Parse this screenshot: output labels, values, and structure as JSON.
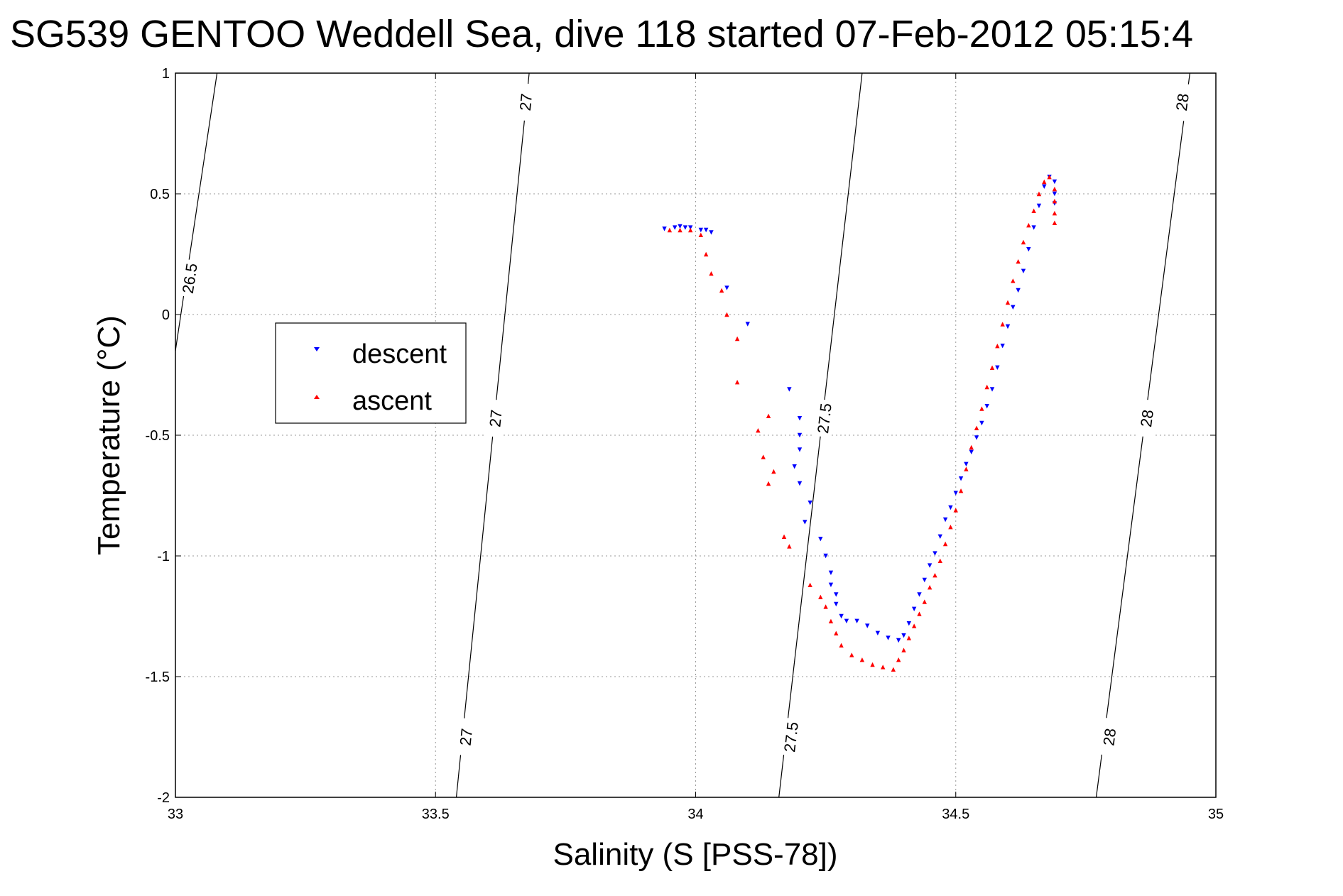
{
  "chart_data": {
    "type": "scatter",
    "title": "SG539 GENTOO Weddell Sea, dive 118 started 07-Feb-2012 05:15:4",
    "xlabel": "Salinity (S [PSS-78])",
    "ylabel": "Temperature (°C)",
    "xlim": [
      33,
      35
    ],
    "ylim": [
      -2,
      1
    ],
    "x_ticks": [
      {
        "value": 33,
        "label": "33"
      },
      {
        "value": 33.5,
        "label": "33.5"
      },
      {
        "value": 34,
        "label": "34"
      },
      {
        "value": 34.5,
        "label": "34.5"
      },
      {
        "value": 35,
        "label": "35"
      }
    ],
    "y_ticks": [
      {
        "value": 1,
        "label": "1"
      },
      {
        "value": 0.5,
        "label": "0.5"
      },
      {
        "value": 0,
        "label": "0"
      },
      {
        "value": -0.5,
        "label": "-0.5"
      },
      {
        "value": -1,
        "label": "-1"
      },
      {
        "value": -1.5,
        "label": "-1.5"
      },
      {
        "value": -2,
        "label": "-2"
      }
    ],
    "grid": true,
    "legend_position": "left",
    "series": [
      {
        "name": "descent",
        "color": "#0000ff",
        "marker": "triangle-down",
        "points": [
          [
            33.94,
            0.355
          ],
          [
            33.96,
            0.36
          ],
          [
            33.97,
            0.365
          ],
          [
            33.98,
            0.36
          ],
          [
            33.99,
            0.36
          ],
          [
            34.01,
            0.35
          ],
          [
            34.02,
            0.35
          ],
          [
            34.03,
            0.34
          ],
          [
            34.06,
            0.11
          ],
          [
            34.1,
            -0.04
          ],
          [
            34.18,
            -0.31
          ],
          [
            34.2,
            -0.43
          ],
          [
            34.2,
            -0.5
          ],
          [
            34.2,
            -0.56
          ],
          [
            34.19,
            -0.63
          ],
          [
            34.2,
            -0.7
          ],
          [
            34.22,
            -0.78
          ],
          [
            34.21,
            -0.86
          ],
          [
            34.24,
            -0.93
          ],
          [
            34.25,
            -1.0
          ],
          [
            34.26,
            -1.07
          ],
          [
            34.26,
            -1.12
          ],
          [
            34.27,
            -1.16
          ],
          [
            34.27,
            -1.2
          ],
          [
            34.28,
            -1.25
          ],
          [
            34.29,
            -1.27
          ],
          [
            34.31,
            -1.27
          ],
          [
            34.33,
            -1.29
          ],
          [
            34.35,
            -1.32
          ],
          [
            34.37,
            -1.34
          ],
          [
            34.39,
            -1.35
          ],
          [
            34.4,
            -1.33
          ],
          [
            34.41,
            -1.28
          ],
          [
            34.42,
            -1.22
          ],
          [
            34.43,
            -1.16
          ],
          [
            34.44,
            -1.1
          ],
          [
            34.45,
            -1.04
          ],
          [
            34.46,
            -0.99
          ],
          [
            34.47,
            -0.92
          ],
          [
            34.48,
            -0.85
          ],
          [
            34.49,
            -0.8
          ],
          [
            34.5,
            -0.74
          ],
          [
            34.51,
            -0.68
          ],
          [
            34.52,
            -0.62
          ],
          [
            34.53,
            -0.57
          ],
          [
            34.54,
            -0.51
          ],
          [
            34.55,
            -0.45
          ],
          [
            34.56,
            -0.38
          ],
          [
            34.57,
            -0.31
          ],
          [
            34.58,
            -0.22
          ],
          [
            34.59,
            -0.13
          ],
          [
            34.6,
            -0.05
          ],
          [
            34.61,
            0.03
          ],
          [
            34.62,
            0.1
          ],
          [
            34.63,
            0.18
          ],
          [
            34.64,
            0.27
          ],
          [
            34.65,
            0.36
          ],
          [
            34.66,
            0.45
          ],
          [
            34.67,
            0.53
          ],
          [
            34.68,
            0.57
          ],
          [
            34.69,
            0.55
          ],
          [
            34.69,
            0.5
          ],
          [
            34.69,
            0.46
          ]
        ]
      },
      {
        "name": "ascent",
        "color": "#ff0000",
        "marker": "triangle-up",
        "points": [
          [
            34.69,
            0.38
          ],
          [
            34.69,
            0.42
          ],
          [
            34.69,
            0.47
          ],
          [
            34.69,
            0.52
          ],
          [
            34.68,
            0.57
          ],
          [
            34.67,
            0.55
          ],
          [
            34.66,
            0.5
          ],
          [
            34.65,
            0.43
          ],
          [
            34.64,
            0.37
          ],
          [
            34.63,
            0.3
          ],
          [
            34.62,
            0.22
          ],
          [
            34.61,
            0.14
          ],
          [
            34.6,
            0.05
          ],
          [
            34.59,
            -0.04
          ],
          [
            34.58,
            -0.13
          ],
          [
            34.57,
            -0.22
          ],
          [
            34.56,
            -0.3
          ],
          [
            34.55,
            -0.39
          ],
          [
            34.54,
            -0.47
          ],
          [
            34.53,
            -0.55
          ],
          [
            34.52,
            -0.64
          ],
          [
            34.51,
            -0.73
          ],
          [
            34.5,
            -0.81
          ],
          [
            34.49,
            -0.88
          ],
          [
            34.48,
            -0.95
          ],
          [
            34.47,
            -1.02
          ],
          [
            34.46,
            -1.08
          ],
          [
            34.45,
            -1.13
          ],
          [
            34.44,
            -1.19
          ],
          [
            34.43,
            -1.24
          ],
          [
            34.42,
            -1.29
          ],
          [
            34.41,
            -1.34
          ],
          [
            34.4,
            -1.39
          ],
          [
            34.39,
            -1.43
          ],
          [
            34.38,
            -1.47
          ],
          [
            34.36,
            -1.46
          ],
          [
            34.34,
            -1.45
          ],
          [
            34.32,
            -1.43
          ],
          [
            34.3,
            -1.41
          ],
          [
            34.28,
            -1.37
          ],
          [
            34.27,
            -1.32
          ],
          [
            34.26,
            -1.27
          ],
          [
            34.25,
            -1.21
          ],
          [
            34.24,
            -1.17
          ],
          [
            34.22,
            -1.12
          ],
          [
            34.18,
            -0.96
          ],
          [
            34.17,
            -0.92
          ],
          [
            34.15,
            -0.65
          ],
          [
            34.14,
            -0.7
          ],
          [
            34.13,
            -0.59
          ],
          [
            34.12,
            -0.48
          ],
          [
            34.14,
            -0.42
          ],
          [
            34.08,
            -0.28
          ],
          [
            34.08,
            -0.1
          ],
          [
            34.06,
            0.0
          ],
          [
            34.05,
            0.1
          ],
          [
            34.03,
            0.17
          ],
          [
            34.02,
            0.25
          ],
          [
            34.01,
            0.33
          ],
          [
            33.99,
            0.35
          ],
          [
            33.97,
            0.35
          ],
          [
            33.95,
            0.35
          ]
        ]
      }
    ],
    "contours": [
      {
        "label": "26.5",
        "points": [
          [
            33.0,
            -0.15
          ],
          [
            33.08,
            1.0
          ]
        ],
        "labels_at": [
          {
            "value": "26.5",
            "x": 33.027,
            "y": 0.15
          }
        ]
      },
      {
        "label": "27",
        "points": [
          [
            33.54,
            -2.0
          ],
          [
            33.68,
            1.0
          ]
        ],
        "labels_at": [
          {
            "value": "27",
            "x": 33.558,
            "y": -1.75
          },
          {
            "value": "27",
            "x": 33.615,
            "y": -0.43
          },
          {
            "value": "27",
            "x": 33.673,
            "y": 0.88
          }
        ]
      },
      {
        "label": "27.5",
        "points": [
          [
            34.16,
            -2.0
          ],
          [
            34.32,
            1.0
          ]
        ],
        "labels_at": [
          {
            "value": "27.5",
            "x": 34.183,
            "y": -1.75
          },
          {
            "value": "27.5",
            "x": 34.247,
            "y": -0.43
          }
        ]
      },
      {
        "label": "28",
        "points": [
          [
            34.77,
            -2.0
          ],
          [
            34.95,
            1.0
          ]
        ],
        "labels_at": [
          {
            "value": "28",
            "x": 34.795,
            "y": -1.75
          },
          {
            "value": "28",
            "x": 34.867,
            "y": -0.43
          },
          {
            "value": "28",
            "x": 34.935,
            "y": 0.88
          }
        ]
      }
    ]
  }
}
